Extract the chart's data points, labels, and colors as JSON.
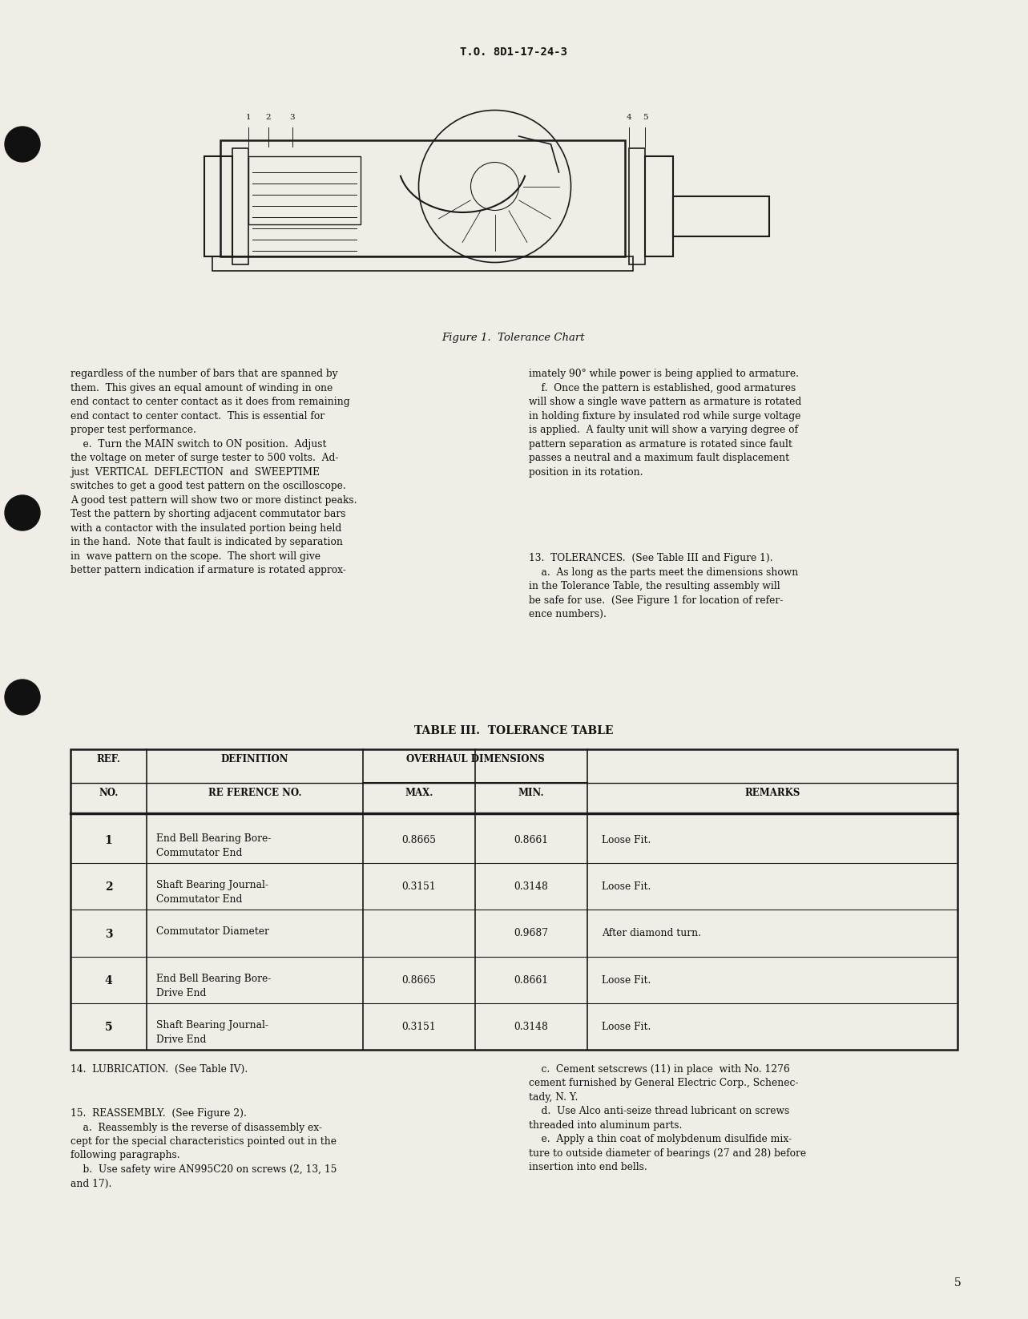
{
  "page_header": "T.O. 8D1-17-24-3",
  "page_number": "5",
  "figure_caption": "Figure 1.  Tolerance Chart",
  "table_title": "TABLE III.  TOLERANCE TABLE",
  "table_rows": [
    [
      "1",
      "End Bell Bearing Bore-\nCommutator End",
      "0.8665",
      "0.8661",
      "Loose Fit."
    ],
    [
      "2",
      "Shaft Bearing Journal-\nCommutator End",
      "0.3151",
      "0.3148",
      "Loose Fit."
    ],
    [
      "3",
      "Commutator Diameter",
      "",
      "0.9687",
      "After diamond turn."
    ],
    [
      "4",
      "End Bell Bearing Bore-\nDrive End",
      "0.8665",
      "0.8661",
      "Loose Fit."
    ],
    [
      "5",
      "Shaft Bearing Journal-\nDrive End",
      "0.3151",
      "0.3148",
      "Loose Fit."
    ]
  ],
  "left_col_text": "regardless of the number of bars that are spanned by\nthem.  This gives an equal amount of winding in one\nend contact to center contact as it does from remaining\nend contact to center contact.  This is essential for\nproper test performance.\n    e.  Turn the MAIN switch to ON position.  Adjust\nthe voltage on meter of surge tester to 500 volts.  Ad-\njust  VERTICAL  DEFLECTION  and  SWEEPTIME\nswitches to get a good test pattern on the oscilloscope.\nA good test pattern will show two or more distinct peaks.\nTest the pattern by shorting adjacent commutator bars\nwith a contactor with the insulated portion being held\nin the hand.  Note that fault is indicated by separation\nin  wave pattern on the scope.  The short will give\nbetter pattern indication if armature is rotated approx-",
  "right_col_text1": "imately 90° while power is being applied to armature.\n    f.  Once the pattern is established, good armatures\nwill show a single wave pattern as armature is rotated\nin holding fixture by insulated rod while surge voltage\nis applied.  A faulty unit will show a varying degree of\npattern separation as armature is rotated since fault\npasses a neutral and a maximum fault displacement\nposition in its rotation.",
  "right_col_text2": "13.  TOLERANCES.  (See Table III and Figure 1).\n    a.  As long as the parts meet the dimensions shown\nin the Tolerance Table, the resulting assembly will\nbe safe for use.  (See Figure 1 for location of refer-\nence numbers).",
  "section14": "14.  LUBRICATION.  (See Table IV).",
  "section15_left": "15.  REASSEMBLY.  (See Figure 2).\n    a.  Reassembly is the reverse of disassembly ex-\ncept for the special characteristics pointed out in the\nfollowing paragraphs.\n    b.  Use safety wire AN995C20 on screws (2, 13, 15\nand 17).",
  "section15_right": "    c.  Cement setscrews (11) in place  with No. 1276\ncement furnished by General Electric Corp., Schenec-\ntady, N. Y.\n    d.  Use Alco anti-seize thread lubricant on screws\nthreaded into aluminum parts.\n    e.  Apply a thin coat of molybdenum disulfide mix-\nture to outside diameter of bearings (27 and 28) before\ninsertion into end bells.",
  "bg_color": "#f0ede6",
  "text_color": "#111111",
  "line_color": "#1a1a1a"
}
